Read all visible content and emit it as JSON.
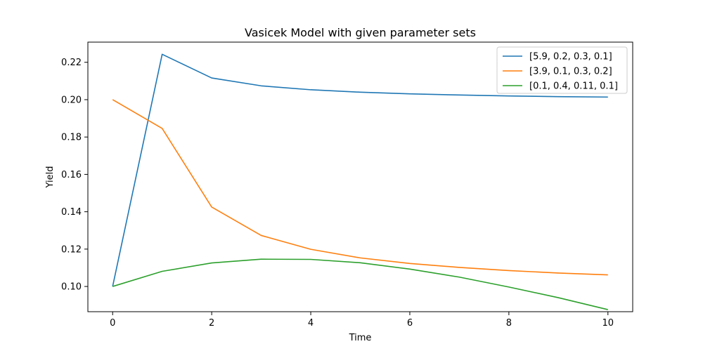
{
  "chart_data": {
    "type": "line",
    "title": "Vasicek Model with given parameter sets",
    "xlabel": "Time",
    "ylabel": "Yield",
    "xlim": [
      -0.5,
      10.5
    ],
    "ylim": [
      0.0865,
      0.2308
    ],
    "xticks": [
      0,
      2,
      4,
      6,
      8,
      10
    ],
    "xtick_labels": [
      "0",
      "2",
      "4",
      "6",
      "8",
      "10"
    ],
    "yticks": [
      0.1,
      0.12,
      0.14,
      0.16,
      0.18,
      0.2,
      0.22
    ],
    "ytick_labels": [
      "0.10",
      "0.12",
      "0.14",
      "0.16",
      "0.18",
      "0.20",
      "0.22"
    ],
    "grid": false,
    "legend_position": "top-right",
    "x": [
      0,
      1,
      2,
      3,
      4,
      5,
      6,
      7,
      8,
      9,
      10
    ],
    "series": [
      {
        "name": "[5.9, 0.2, 0.3, 0.1]",
        "color": "#1f77b4",
        "values": [
          0.1,
          0.2243,
          0.2116,
          0.2074,
          0.2053,
          0.204,
          0.2031,
          0.2025,
          0.202,
          0.2016,
          0.2014
        ]
      },
      {
        "name": "[3.9, 0.1, 0.3, 0.2]",
        "color": "#ff7f0e",
        "values": [
          0.2,
          0.1846,
          0.1425,
          0.1273,
          0.1199,
          0.1153,
          0.1123,
          0.1102,
          0.1085,
          0.1072,
          0.1062
        ]
      },
      {
        "name": "[0.1, 0.4, 0.11, 0.1]",
        "color": "#2ca02c",
        "values": [
          0.1,
          0.1081,
          0.1126,
          0.1146,
          0.1145,
          0.1127,
          0.1093,
          0.105,
          0.0997,
          0.094,
          0.0876
        ]
      }
    ]
  }
}
